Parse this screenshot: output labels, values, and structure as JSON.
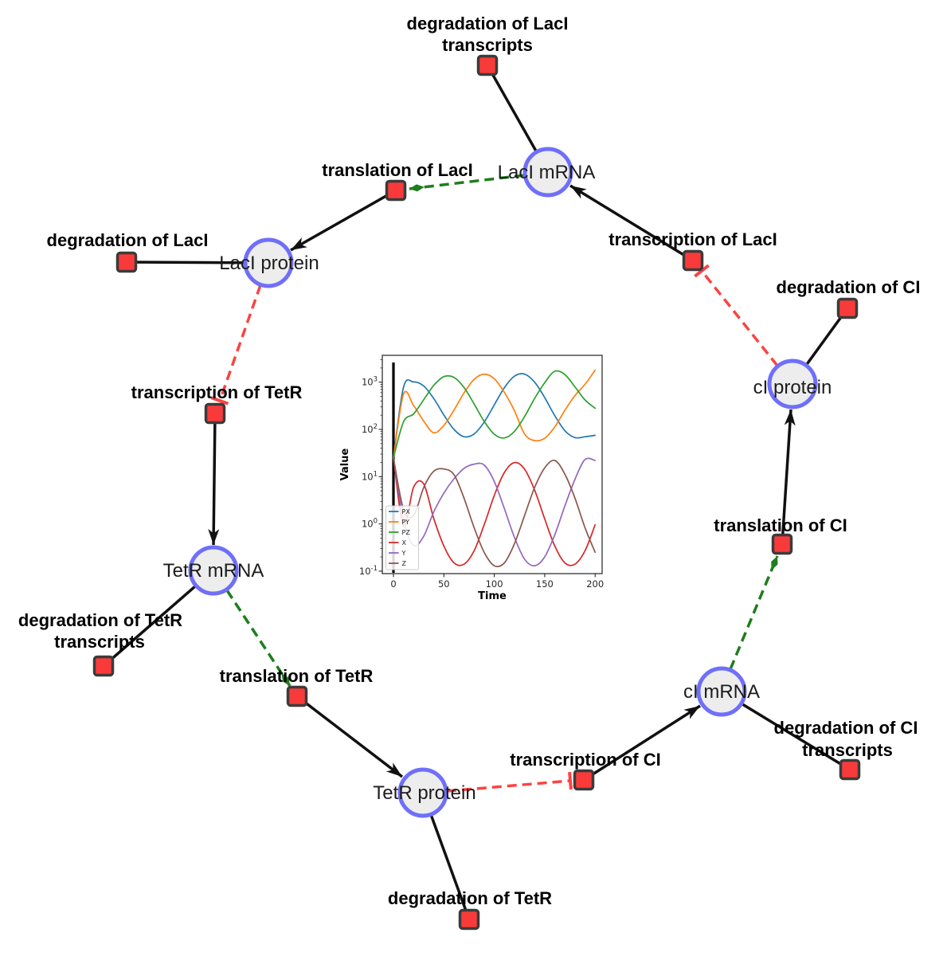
{
  "diagram": {
    "species": {
      "laci_mrna": "LacI mRNA",
      "laci_protein": "LacI protein",
      "tetr_mrna": "TetR mRNA",
      "tetr_protein": "TetR protein",
      "ci_mrna": "cI mRNA",
      "ci_protein": "cI protein"
    },
    "reactions": {
      "deg_laci_tx": {
        "line1": "degradation of LacI",
        "line2": "transcripts"
      },
      "tl_laci": {
        "line1": "translation of LacI"
      },
      "deg_laci": {
        "line1": "degradation of LacI"
      },
      "tc_tetr": {
        "line1": "transcription of TetR"
      },
      "deg_tetr_tx": {
        "line1": "degradation of TetR",
        "line2": "transcripts"
      },
      "tl_tetr": {
        "line1": "translation of TetR"
      },
      "deg_tetr": {
        "line1": "degradation of TetR"
      },
      "tc_ci": {
        "line1": "transcription of CI"
      },
      "deg_ci_tx": {
        "line1": "degradation of CI",
        "line2": "transcripts"
      },
      "tl_ci": {
        "line1": "translation of CI"
      },
      "deg_ci": {
        "line1": "degradation of CI"
      },
      "tc_laci": {
        "line1": "transcription of LacI"
      }
    },
    "colors": {
      "species_fill": "#ededed",
      "species_stroke": "#6f6ffa",
      "reaction_fill": "#f93a3a",
      "reaction_stroke": "#3b3b3b",
      "edge": "#111111",
      "activation": "#1e7d1e",
      "inhibition": "#fb4343"
    }
  },
  "chart_data": {
    "type": "line",
    "title": "",
    "xlabel": "Time",
    "ylabel": "Value",
    "y_scale": "log",
    "x_ticks": [
      0,
      50,
      100,
      150,
      200
    ],
    "y_tick_base": "10",
    "y_tick_exponents": [
      -1,
      0,
      1,
      2,
      3
    ],
    "xlim": [
      -11,
      207
    ],
    "ylim": [
      0.089,
      3600
    ],
    "grid": false,
    "legend_position": "lower left",
    "legend": [
      "PX",
      "PY",
      "PZ",
      "X",
      "Y",
      "Z"
    ],
    "vline_x": 0,
    "x": [
      0,
      10,
      20,
      30,
      40,
      50,
      60,
      70,
      80,
      90,
      100,
      110,
      120,
      130,
      140,
      150,
      160,
      170,
      180,
      190,
      200
    ],
    "series": [
      {
        "name": "PX",
        "color": "#1f77b4",
        "values": [
          25,
          785,
          1010,
          829,
          450,
          202,
          100,
          70,
          80,
          143,
          331,
          766,
          1340,
          1480,
          1000,
          471,
          195,
          94,
          67,
          70,
          75
        ]
      },
      {
        "name": "PY",
        "color": "#ff7f0e",
        "values": [
          25,
          560,
          320,
          150,
          85,
          122,
          256,
          593,
          1150,
          1480,
          1180,
          605,
          249,
          80,
          58,
          65,
          113,
          253,
          520,
          900,
          1800
        ]
      },
      {
        "name": "PZ",
        "color": "#2ca02c",
        "values": [
          25,
          145,
          213,
          426,
          857,
          1310,
          1260,
          771,
          345,
          148,
          79,
          66,
          91,
          187,
          451,
          973,
          1700,
          1450,
          794,
          420,
          280
        ]
      },
      {
        "name": "X",
        "color": "#d62728",
        "values": [
          25,
          0.9,
          6,
          7,
          1.3,
          0.34,
          0.15,
          0.14,
          0.27,
          0.96,
          4,
          12.3,
          19.9,
          14.4,
          5.2,
          1.27,
          0.34,
          0.15,
          0.14,
          0.27,
          0.96
        ]
      },
      {
        "name": "Y",
        "color": "#9467bd",
        "values": [
          25,
          1.2,
          0.35,
          0.55,
          1.8,
          4.5,
          9,
          15,
          18.4,
          17.6,
          7.9,
          2.1,
          0.52,
          0.18,
          0.13,
          0.2,
          0.59,
          2.4,
          8.8,
          23,
          22
        ]
      },
      {
        "name": "Z",
        "color": "#8c564b",
        "values": [
          25,
          2,
          1.5,
          5.9,
          13,
          14.5,
          11,
          3.5,
          0.83,
          0.25,
          0.13,
          0.15,
          0.38,
          1.5,
          5.9,
          15.4,
          22,
          11.3,
          3.5,
          0.83,
          0.25
        ]
      }
    ]
  }
}
